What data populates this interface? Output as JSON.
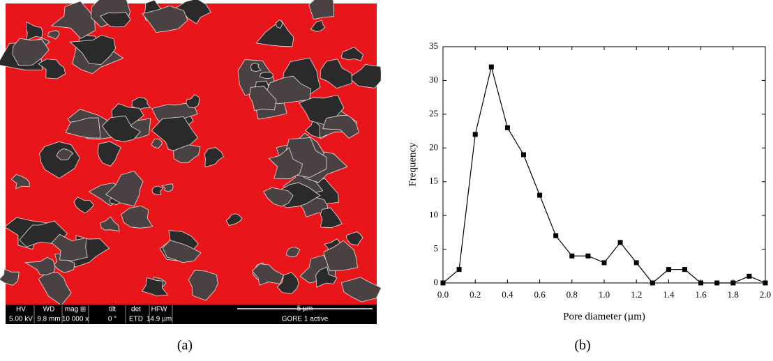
{
  "image_panel": {
    "info_bar": [
      [
        "HV",
        "5.00 kV"
      ],
      [
        "WD",
        "9.8 mm"
      ],
      [
        "mag ⊞",
        "10 000 x"
      ],
      [
        "tilt",
        "0 °"
      ],
      [
        "det",
        "ETD"
      ],
      [
        "HFW",
        "14.9 µm"
      ]
    ],
    "scale_bar": "5 µm",
    "sample": "GORE 1 active"
  },
  "captions": [
    "(a)",
    "(b)"
  ],
  "chart_data": {
    "type": "line",
    "x_label": "Pore diameter (µm)",
    "y_label": "Frequency",
    "x": [
      0.0,
      0.1,
      0.2,
      0.3,
      0.4,
      0.5,
      0.6,
      0.7,
      0.8,
      0.9,
      1.0,
      1.1,
      1.2,
      1.3,
      1.4,
      1.5,
      1.6,
      1.7,
      1.8,
      1.9,
      2.0
    ],
    "series": [
      {
        "color": "#000000",
        "values": [
          0,
          2,
          22,
          32,
          23,
          19,
          13,
          7,
          4,
          4,
          3,
          6,
          3,
          0,
          2,
          2,
          0,
          0,
          0,
          1,
          0
        ]
      }
    ],
    "xlim": [
      0,
      2.0
    ],
    "xticks": [
      {
        "value": 0,
        "label": "0.0"
      },
      0.2,
      0.4,
      0.6,
      0.8,
      {
        "value": 1,
        "label": "1.0"
      },
      1.2,
      1.4,
      1.6,
      1.8,
      {
        "value": 2,
        "label": "2.0"
      }
    ],
    "ylim": [
      0,
      35
    ],
    "yticks": [
      0,
      5,
      10,
      15,
      20,
      25,
      30,
      35
    ],
    "grid": false
  }
}
